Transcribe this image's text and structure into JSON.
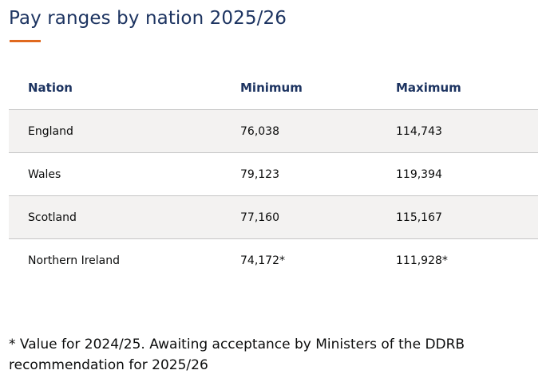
{
  "heading": {
    "title": "Pay ranges by nation 2025/26",
    "accent_color": "#e0691f",
    "title_color": "#1d3461"
  },
  "table": {
    "headers": [
      "Nation",
      "Minimum",
      "Maximum"
    ],
    "rows": [
      {
        "nation": "England",
        "minimum": "76,038",
        "maximum": "114,743"
      },
      {
        "nation": "Wales",
        "minimum": "79,123",
        "maximum": "119,394"
      },
      {
        "nation": "Scotland",
        "minimum": "77,160",
        "maximum": "115,167"
      },
      {
        "nation": "Northern Ireland",
        "minimum": "74,172*",
        "maximum": "111,928*"
      }
    ],
    "row_shading_color": "#f3f2f1"
  },
  "footnote": "* Value for 2024/25. Awaiting acceptance by Ministers of the DDRB recommendation for 2025/26"
}
